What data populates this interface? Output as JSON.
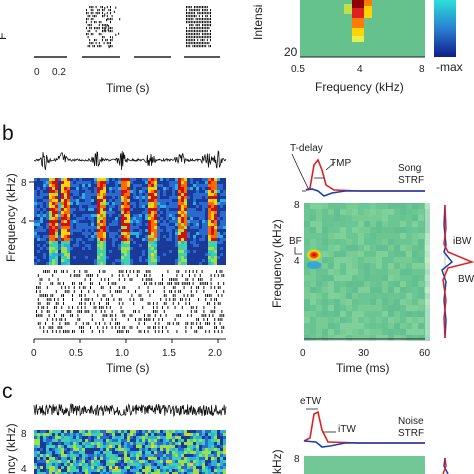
{
  "panel_a": {
    "left": {
      "ylabel_fragment": "F",
      "xticks": [
        "0",
        "0.2"
      ],
      "xlabel": "Time (s)"
    },
    "right": {
      "ylabel_fragment": "Intensi",
      "ytick": "20",
      "xticks": [
        "0.5",
        "4",
        "8"
      ],
      "xlabel": "Frequency (kHz)",
      "colorbar_label": "-max"
    }
  },
  "panel_b": {
    "letter": "b",
    "left": {
      "ylabel": "Frequency (kHz)",
      "yticks": [
        "8",
        "4"
      ],
      "xticks": [
        "0",
        "0.5",
        "1.0",
        "1.5",
        "2.0"
      ],
      "xlabel": "Time (s)"
    },
    "right": {
      "annotations": {
        "tdelay": "T-delay",
        "tmp": "TMP",
        "strf": "Song\nSTRF",
        "bf": "BF",
        "ibw": "iBW",
        "bw": "BW"
      },
      "ylabel": "Frequency (kHz)",
      "yticks": [
        "8",
        "4"
      ],
      "xticks": [
        "0",
        "30",
        "60"
      ],
      "xlabel": "Time (ms)"
    }
  },
  "panel_c": {
    "letter": "c",
    "left": {
      "ylabel_fragment": "ncy (kHz)",
      "ytick": "8",
      "ytick2": "4"
    },
    "right": {
      "annotations": {
        "etw": "eTW",
        "itw": "iTW",
        "strf": "Noise\nSTRF"
      },
      "ylabel_fragment": "kHz)",
      "ytick": "8"
    }
  },
  "colors": {
    "blue": "#1a3fb0",
    "red": "#e02020",
    "field": "#5fbf8a"
  }
}
